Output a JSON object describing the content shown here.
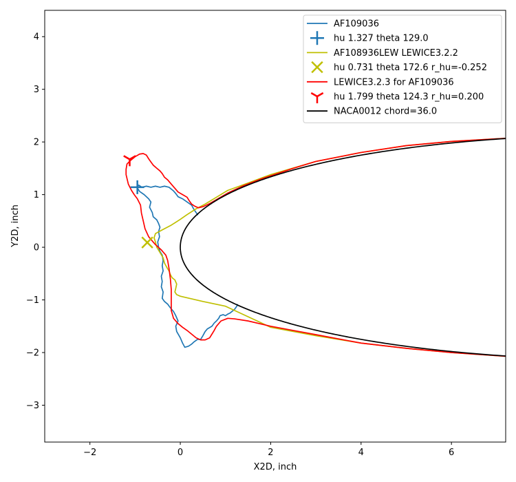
{
  "chart_data": {
    "type": "line",
    "xlabel": "X2D, inch",
    "ylabel": "Y2D, inch",
    "xlim": [
      -3.0,
      7.2
    ],
    "ylim": [
      -3.7,
      4.5
    ],
    "xticks": [
      -2,
      0,
      2,
      4,
      6
    ],
    "yticks": [
      -3,
      -2,
      -1,
      0,
      1,
      2,
      3,
      4
    ],
    "grid": false,
    "legend_position": "top-right",
    "legend": [
      {
        "label": "AF109036",
        "kind": "line",
        "color": "#1f77b4"
      },
      {
        "label": "hu 1.327 theta 129.0",
        "kind": "marker",
        "marker": "plus",
        "color": "#1f77b4"
      },
      {
        "label": "AF108936LEW LEWICE3.2.2",
        "kind": "line",
        "color": "#bfbf00"
      },
      {
        "label": "hu 0.731 theta 172.6 r_hu=-0.252",
        "kind": "marker",
        "marker": "x",
        "color": "#bfbf00"
      },
      {
        "label": "LEWICE3.2.3 for AF109036",
        "kind": "line",
        "color": "#ff0000"
      },
      {
        "label": "hu 1.799 theta 124.3 r_hu=0.200",
        "kind": "marker",
        "marker": "tri_down",
        "color": "#ff0000"
      },
      {
        "label": "NACA0012 chord=36.0",
        "kind": "line",
        "color": "#000000"
      }
    ],
    "series": [
      {
        "name": "AF109036",
        "color": "#1f77b4",
        "points": [
          [
            0.39,
            0.61
          ],
          [
            0.3,
            0.72
          ],
          [
            0.25,
            0.8
          ],
          [
            0.15,
            0.86
          ],
          [
            0.05,
            0.92
          ],
          [
            -0.05,
            0.96
          ],
          [
            -0.1,
            1.02
          ],
          [
            -0.15,
            1.07
          ],
          [
            -0.25,
            1.14
          ],
          [
            -0.35,
            1.16
          ],
          [
            -0.45,
            1.14
          ],
          [
            -0.55,
            1.16
          ],
          [
            -0.65,
            1.14
          ],
          [
            -0.75,
            1.16
          ],
          [
            -0.85,
            1.14
          ],
          [
            -0.92,
            1.18
          ],
          [
            -0.96,
            1.14
          ],
          [
            -0.9,
            1.06
          ],
          [
            -0.8,
            1.0
          ],
          [
            -0.7,
            0.92
          ],
          [
            -0.65,
            0.86
          ],
          [
            -0.68,
            0.76
          ],
          [
            -0.62,
            0.66
          ],
          [
            -0.6,
            0.58
          ],
          [
            -0.52,
            0.52
          ],
          [
            -0.48,
            0.45
          ],
          [
            -0.45,
            0.38
          ],
          [
            -0.48,
            0.3
          ],
          [
            -0.46,
            0.2
          ],
          [
            -0.5,
            0.1
          ],
          [
            -0.48,
            0.0
          ],
          [
            -0.45,
            -0.08
          ],
          [
            -0.4,
            -0.15
          ],
          [
            -0.38,
            -0.25
          ],
          [
            -0.4,
            -0.35
          ],
          [
            -0.38,
            -0.45
          ],
          [
            -0.42,
            -0.55
          ],
          [
            -0.4,
            -0.65
          ],
          [
            -0.42,
            -0.75
          ],
          [
            -0.38,
            -0.85
          ],
          [
            -0.4,
            -0.97
          ],
          [
            -0.35,
            -1.03
          ],
          [
            -0.28,
            -1.08
          ],
          [
            -0.22,
            -1.15
          ],
          [
            -0.15,
            -1.22
          ],
          [
            -0.1,
            -1.3
          ],
          [
            -0.05,
            -1.4
          ],
          [
            -0.1,
            -1.5
          ],
          [
            -0.08,
            -1.6
          ],
          [
            0.0,
            -1.72
          ],
          [
            0.05,
            -1.82
          ],
          [
            0.1,
            -1.9
          ],
          [
            0.18,
            -1.88
          ],
          [
            0.25,
            -1.84
          ],
          [
            0.3,
            -1.8
          ],
          [
            0.38,
            -1.75
          ],
          [
            0.45,
            -1.75
          ],
          [
            0.5,
            -1.68
          ],
          [
            0.55,
            -1.6
          ],
          [
            0.6,
            -1.55
          ],
          [
            0.7,
            -1.5
          ],
          [
            0.75,
            -1.44
          ],
          [
            0.8,
            -1.4
          ],
          [
            0.85,
            -1.35
          ],
          [
            0.88,
            -1.3
          ],
          [
            0.95,
            -1.28
          ],
          [
            1.0,
            -1.3
          ],
          [
            1.05,
            -1.27
          ],
          [
            1.1,
            -1.25
          ],
          [
            1.2,
            -1.18
          ],
          [
            1.25,
            -1.12
          ],
          [
            1.27,
            -1.08
          ]
        ]
      },
      {
        "name": "AF108936LEW LEWICE3.2.2",
        "color": "#bfbf00",
        "points": [
          [
            7.2,
            -2.07
          ],
          [
            6.0,
            -2.0
          ],
          [
            5.0,
            -1.92
          ],
          [
            4.0,
            -1.82
          ],
          [
            3.0,
            -1.68
          ],
          [
            2.0,
            -1.52
          ],
          [
            1.0,
            -1.12
          ],
          [
            0.5,
            -1.03
          ],
          [
            0.0,
            -0.93
          ],
          [
            -0.08,
            -0.9
          ],
          [
            -0.12,
            -0.85
          ],
          [
            -0.1,
            -0.78
          ],
          [
            -0.08,
            -0.7
          ],
          [
            -0.12,
            -0.62
          ],
          [
            -0.18,
            -0.58
          ],
          [
            -0.22,
            -0.52
          ],
          [
            -0.25,
            -0.45
          ],
          [
            -0.3,
            -0.38
          ],
          [
            -0.35,
            -0.3
          ],
          [
            -0.38,
            -0.2
          ],
          [
            -0.45,
            -0.1
          ],
          [
            -0.52,
            0.0
          ],
          [
            -0.55,
            0.1
          ],
          [
            -0.58,
            0.18
          ],
          [
            -0.55,
            0.26
          ],
          [
            -0.4,
            0.33
          ],
          [
            -0.2,
            0.42
          ],
          [
            0.0,
            0.53
          ],
          [
            0.15,
            0.62
          ],
          [
            0.35,
            0.73
          ],
          [
            0.55,
            0.82
          ],
          [
            0.8,
            0.95
          ],
          [
            1.05,
            1.08
          ],
          [
            1.5,
            1.22
          ],
          [
            2.0,
            1.38
          ],
          [
            3.0,
            1.63
          ],
          [
            4.0,
            1.8
          ],
          [
            5.0,
            1.93
          ],
          [
            6.0,
            2.01
          ],
          [
            7.2,
            2.07
          ]
        ]
      },
      {
        "name": "LEWICE3.2.3 for AF109036",
        "color": "#ff0000",
        "points": [
          [
            7.2,
            -2.07
          ],
          [
            6.0,
            -2.0
          ],
          [
            5.0,
            -1.92
          ],
          [
            4.0,
            -1.82
          ],
          [
            3.0,
            -1.66
          ],
          [
            2.5,
            -1.58
          ],
          [
            2.0,
            -1.5
          ],
          [
            1.5,
            -1.4
          ],
          [
            1.2,
            -1.36
          ],
          [
            1.05,
            -1.35
          ],
          [
            0.9,
            -1.4
          ],
          [
            0.8,
            -1.5
          ],
          [
            0.75,
            -1.58
          ],
          [
            0.7,
            -1.65
          ],
          [
            0.65,
            -1.72
          ],
          [
            0.55,
            -1.76
          ],
          [
            0.45,
            -1.76
          ],
          [
            0.35,
            -1.72
          ],
          [
            0.25,
            -1.65
          ],
          [
            0.15,
            -1.58
          ],
          [
            0.05,
            -1.52
          ],
          [
            -0.05,
            -1.45
          ],
          [
            -0.15,
            -1.35
          ],
          [
            -0.2,
            -1.2
          ],
          [
            -0.2,
            -1.0
          ],
          [
            -0.2,
            -0.8
          ],
          [
            -0.22,
            -0.6
          ],
          [
            -0.25,
            -0.4
          ],
          [
            -0.28,
            -0.25
          ],
          [
            -0.32,
            -0.15
          ],
          [
            -0.42,
            -0.05
          ],
          [
            -0.55,
            0.05
          ],
          [
            -0.7,
            0.2
          ],
          [
            -0.78,
            0.35
          ],
          [
            -0.82,
            0.5
          ],
          [
            -0.86,
            0.65
          ],
          [
            -0.88,
            0.8
          ],
          [
            -0.95,
            0.92
          ],
          [
            -1.02,
            1.0
          ],
          [
            -1.08,
            1.08
          ],
          [
            -1.15,
            1.2
          ],
          [
            -1.2,
            1.38
          ],
          [
            -1.2,
            1.48
          ],
          [
            -1.18,
            1.58
          ],
          [
            -1.1,
            1.65
          ],
          [
            -1.0,
            1.72
          ],
          [
            -0.9,
            1.77
          ],
          [
            -0.82,
            1.78
          ],
          [
            -0.75,
            1.75
          ],
          [
            -0.7,
            1.68
          ],
          [
            -0.65,
            1.62
          ],
          [
            -0.6,
            1.56
          ],
          [
            -0.52,
            1.5
          ],
          [
            -0.45,
            1.45
          ],
          [
            -0.4,
            1.4
          ],
          [
            -0.35,
            1.33
          ],
          [
            -0.28,
            1.28
          ],
          [
            -0.22,
            1.22
          ],
          [
            -0.15,
            1.15
          ],
          [
            -0.1,
            1.1
          ],
          [
            -0.05,
            1.05
          ],
          [
            0.05,
            1.0
          ],
          [
            0.15,
            0.95
          ],
          [
            0.2,
            0.88
          ],
          [
            0.25,
            0.82
          ],
          [
            0.32,
            0.78
          ],
          [
            0.4,
            0.75
          ],
          [
            0.5,
            0.77
          ],
          [
            0.65,
            0.83
          ],
          [
            0.85,
            0.93
          ],
          [
            1.05,
            1.03
          ],
          [
            1.4,
            1.17
          ],
          [
            1.8,
            1.3
          ],
          [
            2.5,
            1.5
          ],
          [
            3.0,
            1.63
          ],
          [
            4.0,
            1.8
          ],
          [
            5.0,
            1.93
          ],
          [
            6.0,
            2.01
          ],
          [
            7.2,
            2.07
          ]
        ]
      }
    ],
    "naca0012": {
      "name": "NACA0012 chord=36.0",
      "chord": 36.0,
      "thickness": 0.12,
      "color": "#000000"
    },
    "markers": [
      {
        "label": "hu 1.327 theta 129.0",
        "x": -0.95,
        "y": 1.14,
        "marker": "plus",
        "color": "#1f77b4"
      },
      {
        "label": "hu 0.731 theta 172.6 r_hu=-0.252",
        "x": -0.73,
        "y": 0.09,
        "marker": "x",
        "color": "#bfbf00"
      },
      {
        "label": "hu 1.799 theta 124.3 r_hu=0.200",
        "x": -1.12,
        "y": 1.67,
        "marker": "tri_down",
        "color": "#ff0000"
      }
    ]
  }
}
